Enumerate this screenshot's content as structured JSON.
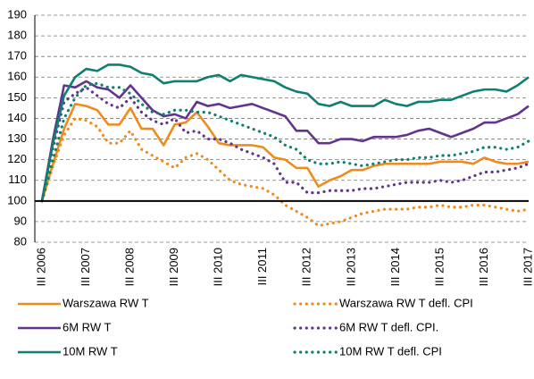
{
  "chart_data": {
    "type": "line",
    "categories": [
      "III 2006",
      null,
      null,
      null,
      "III 2007",
      null,
      null,
      null,
      "III 2008",
      null,
      null,
      null,
      "III 2009",
      null,
      null,
      null,
      "III 2010",
      null,
      null,
      null,
      "III 2011",
      null,
      null,
      null,
      "III 2012",
      null,
      null,
      null,
      "III 2013",
      null,
      null,
      null,
      "III 2014",
      null,
      null,
      null,
      "III 2015",
      null,
      null,
      null,
      "III 2016",
      null,
      null,
      null,
      "III 2017"
    ],
    "series": [
      {
        "name": "Warszawa RW T",
        "color": "#f18a1c",
        "style": "solid",
        "values": [
          100,
          118,
          135,
          147,
          146,
          144,
          137,
          137,
          145,
          135,
          135,
          127,
          137,
          138,
          143,
          136,
          128,
          127,
          127,
          127,
          126,
          121,
          120,
          116,
          116,
          107,
          110,
          112,
          115,
          115,
          117,
          118,
          118,
          118,
          118,
          118,
          119,
          119,
          119,
          118,
          121,
          119,
          118,
          118,
          119
        ]
      },
      {
        "name": "Warszawa RW T defl. CPI",
        "color": "#f18a1c",
        "style": "dotted",
        "values": [
          100,
          117,
          132,
          140,
          139,
          136,
          128,
          128,
          134,
          125,
          122,
          119,
          116,
          121,
          123,
          120,
          115,
          110,
          108,
          107,
          106,
          103,
          98,
          95,
          92,
          88,
          89,
          90,
          92,
          94,
          95,
          96,
          96,
          96,
          97,
          97,
          98,
          97,
          97,
          98,
          98,
          97,
          96,
          95,
          96
        ]
      },
      {
        "name": "6M RW T",
        "color": "#62338f",
        "style": "solid",
        "values": [
          100,
          130,
          156,
          155,
          158,
          155,
          154,
          150,
          156,
          150,
          144,
          141,
          142,
          140,
          148,
          146,
          147,
          145,
          146,
          147,
          145,
          143,
          141,
          134,
          134,
          128,
          128,
          130,
          130,
          129,
          131,
          131,
          131,
          132,
          134,
          135,
          133,
          131,
          133,
          135,
          138,
          138,
          140,
          142,
          146
        ]
      },
      {
        "name": "6M RW T defl. CPI.",
        "color": "#62338f",
        "style": "dotted",
        "values": [
          100,
          126,
          148,
          152,
          155,
          151,
          147,
          145,
          150,
          143,
          139,
          137,
          140,
          133,
          134,
          130,
          130,
          128,
          125,
          123,
          121,
          118,
          109,
          109,
          104,
          104,
          105,
          105,
          105,
          106,
          106,
          107,
          108,
          109,
          109,
          109,
          110,
          109,
          110,
          112,
          114,
          114,
          115,
          116,
          118
        ]
      },
      {
        "name": "10M RW T",
        "color": "#0f7f70",
        "style": "solid",
        "values": [
          100,
          128,
          151,
          160,
          164,
          163,
          166,
          166,
          165,
          162,
          161,
          157,
          158,
          158,
          158,
          160,
          161,
          158,
          161,
          160,
          159,
          158,
          155,
          153,
          152,
          147,
          146,
          148,
          146,
          146,
          146,
          149,
          147,
          146,
          148,
          148,
          149,
          149,
          151,
          153,
          154,
          154,
          153,
          156,
          160
        ]
      },
      {
        "name": "10M RW T defl. CPI",
        "color": "#0f7f70",
        "style": "dotted",
        "values": [
          100,
          120,
          140,
          150,
          156,
          157,
          155,
          155,
          152,
          147,
          143,
          142,
          144,
          144,
          143,
          143,
          141,
          139,
          137,
          135,
          133,
          131,
          127,
          125,
          120,
          118,
          118,
          119,
          118,
          117,
          118,
          119,
          120,
          120,
          121,
          121,
          122,
          122,
          123,
          124,
          126,
          126,
          125,
          126,
          129
        ]
      }
    ],
    "ylim": [
      80,
      190
    ],
    "yticks": [
      80,
      90,
      100,
      110,
      120,
      130,
      140,
      150,
      160,
      170,
      180,
      190
    ],
    "grid": true,
    "baseline": 100,
    "legend": "bottom"
  }
}
